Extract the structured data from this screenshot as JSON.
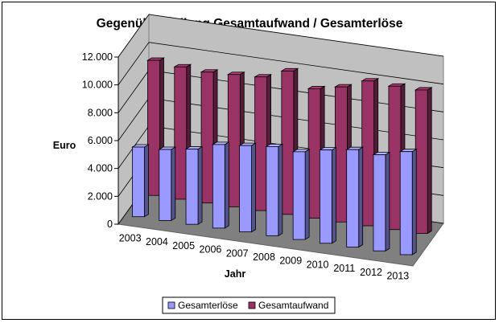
{
  "chart_data": {
    "type": "bar",
    "title": "Gegenüberstellung Gesamtaufwand / Gesamterlöse",
    "xlabel": "Jahr",
    "ylabel": "Euro",
    "ylim": [
      0,
      12000
    ],
    "y_ticks": [
      "0",
      "2.000",
      "4.000",
      "6.000",
      "8.000",
      "10.000",
      "12.000"
    ],
    "categories": [
      "2003",
      "2004",
      "2005",
      "2006",
      "2007",
      "2008",
      "2009",
      "2010",
      "2011",
      "2012",
      "2013"
    ],
    "series": [
      {
        "name": "Gesamterlöse",
        "color": "#9999ff",
        "values": [
          5000,
          5100,
          5400,
          6000,
          6200,
          6400,
          6300,
          6700,
          7000,
          6900,
          7400
        ]
      },
      {
        "name": "Gesamtaufwand",
        "color": "#993366",
        "values": [
          9700,
          9500,
          9400,
          9500,
          9600,
          10300,
          9300,
          9700,
          10400,
          10300,
          10300
        ]
      }
    ],
    "legend_position": "bottom",
    "grid": true,
    "style": "3d-column"
  }
}
